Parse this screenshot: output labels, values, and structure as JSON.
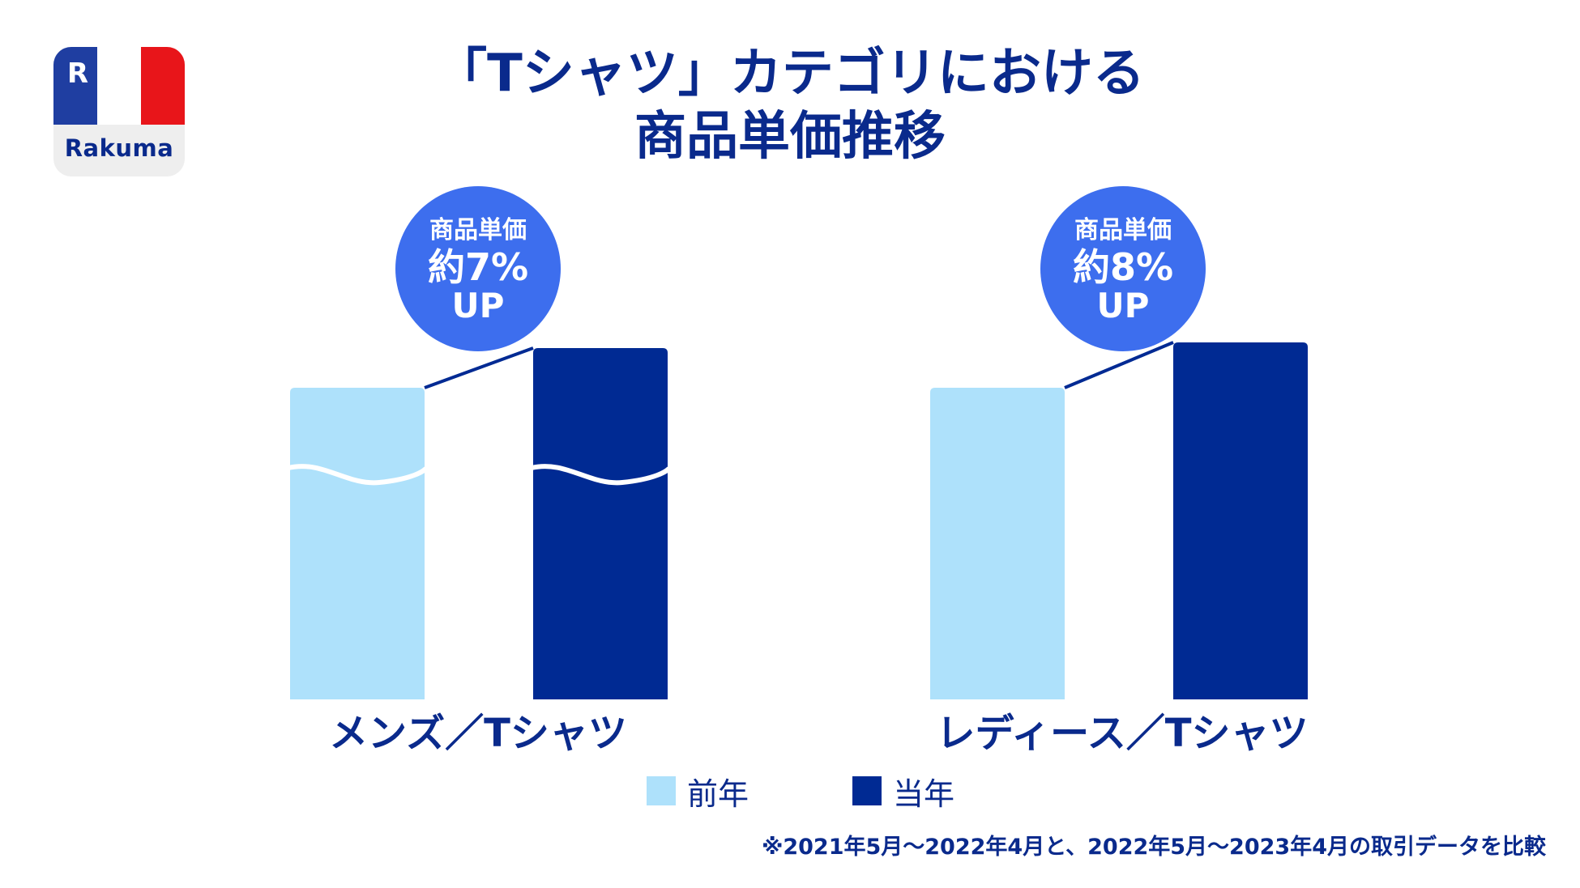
{
  "logo": {
    "brand": "Rakuma",
    "icon": "rakuma-r-icon",
    "flag_colors": [
      "#1f3ea1",
      "#ffffff",
      "#e8151a"
    ]
  },
  "title": {
    "line1": "「Tシャツ」カテゴリにおける",
    "line2": "商品単価推移"
  },
  "colors": {
    "previous_year": "#aee1fb",
    "current_year": "#002a93",
    "badge": "#3d6eee",
    "text": "#0a2a8c"
  },
  "chart_data": [
    {
      "type": "bar",
      "category_label": "メンズ／Tシャツ",
      "series": [
        {
          "name": "前年",
          "value": 100
        },
        {
          "name": "当年",
          "value": 107
        }
      ],
      "axis_break": true,
      "badge": {
        "line1": "商品単価",
        "line2": "約7%",
        "line3": "UP"
      }
    },
    {
      "type": "bar",
      "category_label": "レディース／Tシャツ",
      "series": [
        {
          "name": "前年",
          "value": 100
        },
        {
          "name": "当年",
          "value": 108
        }
      ],
      "axis_break": false,
      "badge": {
        "line1": "商品単価",
        "line2": "約8%",
        "line3": "UP"
      }
    }
  ],
  "legend": [
    {
      "label": "前年",
      "color": "#aee1fb"
    },
    {
      "label": "当年",
      "color": "#002a93"
    }
  ],
  "footnote": "※2021年5月〜2022年4月と、2022年5月〜2023年4月の取引データを比較"
}
